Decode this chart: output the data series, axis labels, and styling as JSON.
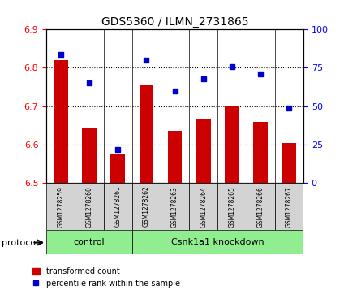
{
  "title": "GDS5360 / ILMN_2731865",
  "samples": [
    "GSM1278259",
    "GSM1278260",
    "GSM1278261",
    "GSM1278262",
    "GSM1278263",
    "GSM1278264",
    "GSM1278265",
    "GSM1278266",
    "GSM1278267"
  ],
  "transformed_counts": [
    6.82,
    6.645,
    6.575,
    6.755,
    6.635,
    6.665,
    6.7,
    6.66,
    6.605
  ],
  "percentile_ranks": [
    84,
    65,
    22,
    80,
    60,
    68,
    76,
    71,
    49
  ],
  "ylim_left": [
    6.5,
    6.9
  ],
  "ylim_right": [
    0,
    100
  ],
  "yticks_left": [
    6.5,
    6.6,
    6.7,
    6.8,
    6.9
  ],
  "yticks_right": [
    0,
    25,
    50,
    75,
    100
  ],
  "bar_color": "#cc0000",
  "dot_color": "#0000cc",
  "bar_width": 0.5,
  "control_samples": 3,
  "control_label": "control",
  "treatment_label": "Csnk1a1 knockdown",
  "protocol_label": "protocol",
  "legend_bar_label": "transformed count",
  "legend_dot_label": "percentile rank within the sample",
  "control_bg": "#90ee90",
  "treatment_bg": "#90ee90",
  "sample_bg": "#d3d3d3",
  "grid_color": "#000000",
  "baseline": 6.5
}
